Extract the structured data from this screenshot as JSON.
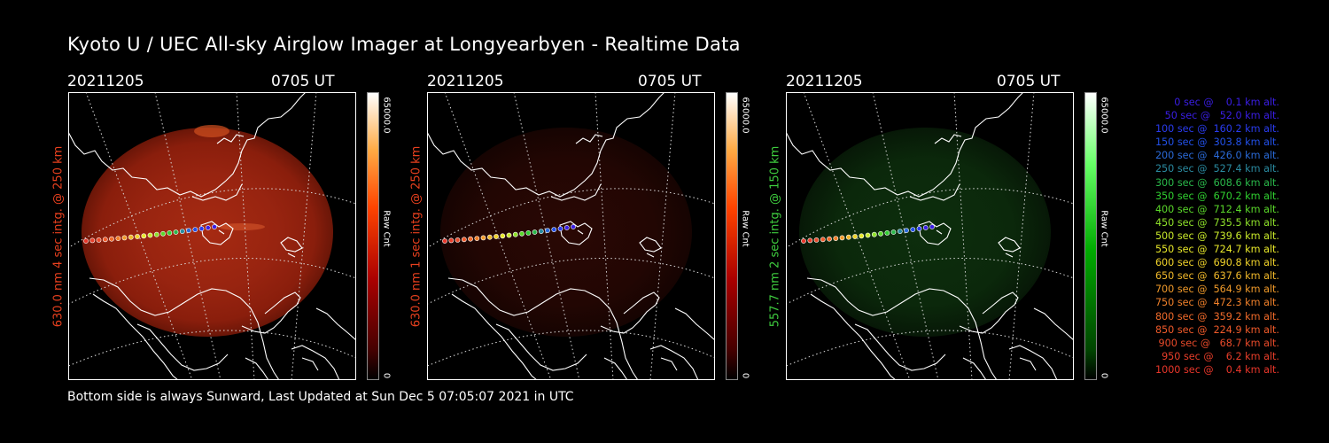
{
  "title": "Kyoto U / UEC All-sky Airglow Imager at Longyearbyen - Realtime Data",
  "footer": "Bottom side is always Sunward, Last Updated at Sun Dec  5 07:05:07 2021 in UTC",
  "panels": [
    {
      "date": "20211205",
      "time": "0705 UT",
      "ylabel": "630.0 nm 4 sec intg. @ 250 km",
      "ylabel_color": "#e8401e",
      "cbar_max": "65000.0",
      "cbar_min": "0",
      "cbar_label": "Raw Cnt",
      "colormap": "red",
      "intensity": "bright"
    },
    {
      "date": "20211205",
      "time": "0705 UT",
      "ylabel": "630.0 nm 1 sec intg. @ 250 km",
      "ylabel_color": "#e8401e",
      "cbar_max": "65000.0",
      "cbar_min": "0",
      "cbar_label": "Raw Cnt",
      "colormap": "red",
      "intensity": "dim"
    },
    {
      "date": "20211205",
      "time": "0705 UT",
      "ylabel": "557.7 nm 2 sec intg. @ 150 km",
      "ylabel_color": "#3ecc3e",
      "cbar_max": "65000.0",
      "cbar_min": "0",
      "cbar_label": "Raw Cnt",
      "colormap": "green",
      "intensity": "dim"
    }
  ],
  "legend": [
    {
      "text": "0 sec @    0.1 km alt.",
      "color": "#3a1ee6"
    },
    {
      "text": "50 sec @   52.0 km alt.",
      "color": "#3a1ee6"
    },
    {
      "text": "100 sec @  160.2 km alt.",
      "color": "#2a3cf0"
    },
    {
      "text": "150 sec @  303.8 km alt.",
      "color": "#2250e8"
    },
    {
      "text": "200 sec @  426.0 km alt.",
      "color": "#2a6ad8"
    },
    {
      "text": "250 sec @  527.4 km alt.",
      "color": "#2a8aa0"
    },
    {
      "text": "300 sec @  608.6 km alt.",
      "color": "#2ab84a"
    },
    {
      "text": "350 sec @  670.2 km alt.",
      "color": "#30d030"
    },
    {
      "text": "400 sec @  712.4 km alt.",
      "color": "#5ad82a"
    },
    {
      "text": "450 sec @  735.5 km alt.",
      "color": "#8ee02a"
    },
    {
      "text": "500 sec @  739.6 km alt.",
      "color": "#c8e82a"
    },
    {
      "text": "550 sec @  724.7 km alt.",
      "color": "#e8e82a"
    },
    {
      "text": "600 sec @  690.8 km alt.",
      "color": "#f0d22a"
    },
    {
      "text": "650 sec @  637.6 km alt.",
      "color": "#f0b82a"
    },
    {
      "text": "700 sec @  564.9 km alt.",
      "color": "#f09a2a"
    },
    {
      "text": "750 sec @  472.3 km alt.",
      "color": "#f0802a"
    },
    {
      "text": "800 sec @  359.2 km alt.",
      "color": "#f06a2a"
    },
    {
      "text": "850 sec @  224.9 km alt.",
      "color": "#f05a2a"
    },
    {
      "text": "900 sec @   68.7 km alt.",
      "color": "#e84a2a"
    },
    {
      "text": "950 sec @    6.2 km alt.",
      "color": "#e83e2a"
    },
    {
      "text": "1000 sec @    0.4 km alt.",
      "color": "#e8362a"
    }
  ]
}
